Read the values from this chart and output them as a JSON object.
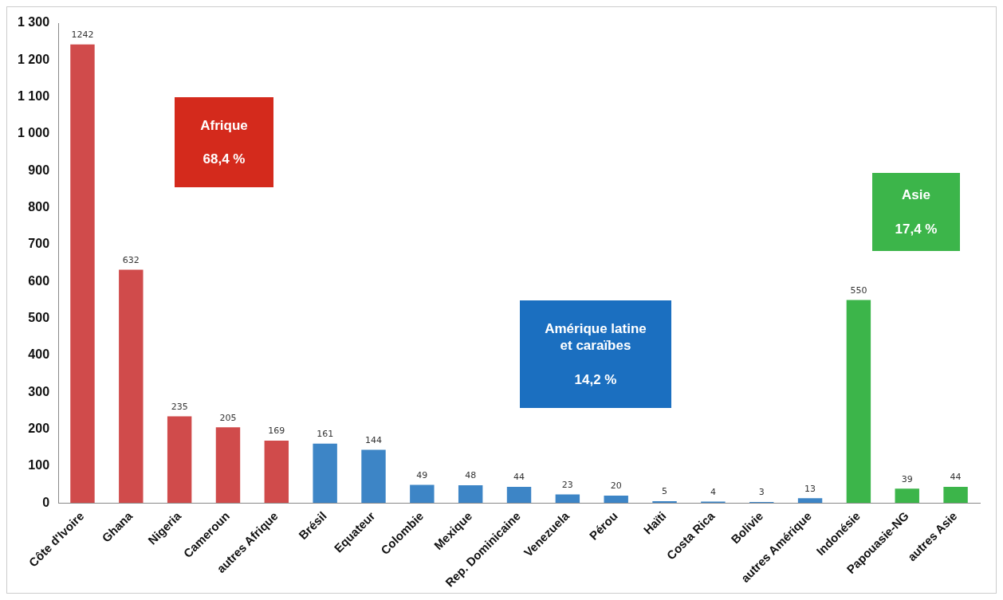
{
  "chart_data": {
    "type": "bar",
    "categories": [
      "Côte d'Ivoire",
      "Ghana",
      "Nigeria",
      "Cameroun",
      "autres Afrique",
      "Brésil",
      "Equateur",
      "Colombie",
      "Mexique",
      "Rep. Dominicaine",
      "Venezuela",
      "Pérou",
      "Haïti",
      "Costa Rica",
      "Bolivie",
      "autres Amérique",
      "Indonésie",
      "Papouasie-NG",
      "autres Asie"
    ],
    "values": [
      1242,
      632,
      235,
      205,
      169,
      161,
      144,
      49,
      48,
      44,
      23,
      20,
      5,
      4,
      3,
      13,
      550,
      39,
      44
    ],
    "colors": [
      "#d04b4b",
      "#d04b4b",
      "#d04b4b",
      "#d04b4b",
      "#d04b4b",
      "#3d85c6",
      "#3d85c6",
      "#3d85c6",
      "#3d85c6",
      "#3d85c6",
      "#3d85c6",
      "#3d85c6",
      "#3d85c6",
      "#3d85c6",
      "#3d85c6",
      "#3d85c6",
      "#3cb54a",
      "#3cb54a",
      "#3cb54a"
    ],
    "ylim": [
      0,
      1300
    ],
    "yticks": [
      0,
      100,
      200,
      300,
      400,
      500,
      600,
      700,
      800,
      900,
      {
        "value": 1000,
        "label": "1 000"
      },
      {
        "value": 1100,
        "label": "1 100"
      },
      {
        "value": 1200,
        "label": "1 200"
      },
      {
        "value": 1300,
        "label": "1 300"
      }
    ],
    "grid": false,
    "legend": false,
    "data_labels": true,
    "annotations": [
      "Afrique\n\n68,4 %",
      "Amérique latine\net caraïbes\n\n14,2 %",
      "Asie\n\n17,4 %"
    ]
  }
}
